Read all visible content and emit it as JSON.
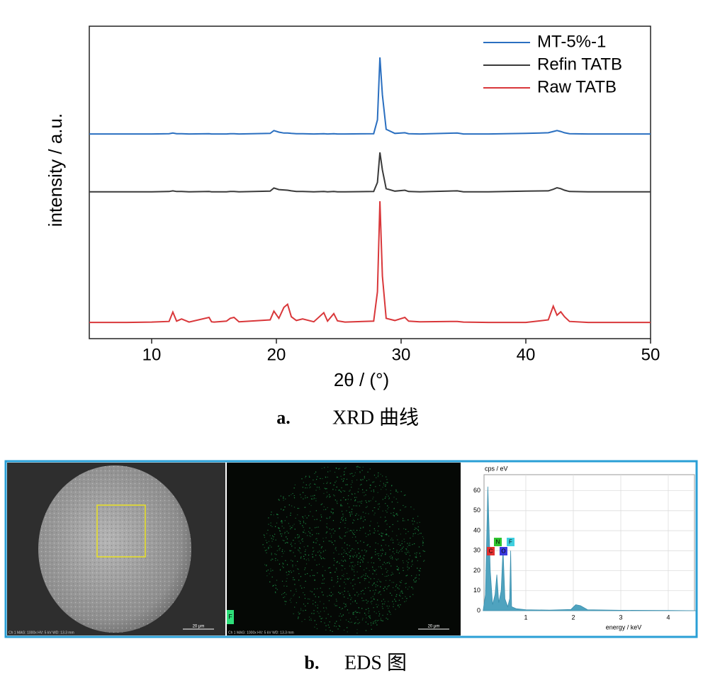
{
  "chart_data": [
    {
      "type": "line",
      "xlabel": "2θ / (°)",
      "ylabel": "intensity / a.u.",
      "xlim": [
        5,
        50
      ],
      "xticks": [
        10,
        20,
        30,
        40,
        50
      ],
      "ylim": [
        0,
        100
      ],
      "legend": "upper right",
      "x": [
        5,
        8,
        10,
        11.4,
        11.7,
        12,
        12.4,
        13,
        14.6,
        14.8,
        15,
        16,
        16.3,
        16.6,
        17,
        19.5,
        19.8,
        20.2,
        20.6,
        20.9,
        21.2,
        21.6,
        22.1,
        23,
        23.8,
        24.1,
        24.6,
        24.9,
        25.5,
        27.8,
        28.1,
        28.3,
        28.5,
        28.8,
        29.5,
        30.3,
        30.6,
        31.5,
        34.5,
        35,
        37,
        40,
        41.8,
        42.2,
        42.5,
        42.8,
        43.1,
        43.5,
        45,
        50
      ],
      "series": [
        {
          "name": "MT-5%-1",
          "color": "#2a6fc0",
          "values": [
            65.5,
            65.5,
            65.5,
            65.6,
            65.8,
            65.6,
            65.6,
            65.5,
            65.6,
            65.5,
            65.5,
            65.5,
            65.6,
            65.6,
            65.5,
            65.7,
            66.6,
            66.1,
            65.8,
            65.8,
            65.7,
            65.6,
            65.6,
            65.5,
            65.6,
            65.5,
            65.6,
            65.5,
            65.5,
            65.6,
            70,
            90,
            78,
            67,
            65.7,
            65.9,
            65.6,
            65.5,
            65.8,
            65.5,
            65.5,
            65.7,
            65.9,
            66.3,
            66.6,
            66.3,
            65.9,
            65.6,
            65.5,
            65.5
          ]
        },
        {
          "name": "Refin TATB",
          "color": "#3a3a3a",
          "values": [
            47,
            47,
            47,
            47.1,
            47.3,
            47.1,
            47.1,
            47,
            47.1,
            47,
            47,
            47,
            47.1,
            47.1,
            47,
            47.2,
            48.2,
            47.7,
            47.6,
            47.5,
            47.3,
            47.1,
            47.1,
            47,
            47.1,
            47,
            47.1,
            47,
            47,
            47.1,
            50,
            59.6,
            54,
            48,
            47.2,
            47.5,
            47.1,
            47,
            47.3,
            47,
            47,
            47.2,
            47.3,
            47.8,
            48.3,
            48,
            47.5,
            47.1,
            47,
            47
          ]
        },
        {
          "name": "Raw TATB",
          "color": "#d9373a",
          "values": [
            5.2,
            5.2,
            5.3,
            5.5,
            8.5,
            5.6,
            6.3,
            5.3,
            6.8,
            5.4,
            5.3,
            5.6,
            6.5,
            6.8,
            5.4,
            6,
            8.8,
            6.5,
            10,
            11,
            7,
            5.8,
            6.3,
            5.4,
            8.3,
            5.6,
            8,
            5.7,
            5.3,
            5.6,
            15,
            44,
            20,
            6.5,
            5.8,
            6.8,
            5.6,
            5.4,
            5.5,
            5.3,
            5.2,
            5.2,
            6,
            10.4,
            7.5,
            8.6,
            7,
            5.5,
            5.2,
            5.2
          ]
        }
      ]
    },
    {
      "type": "area",
      "ylabel": "cps / eV",
      "xlabel": "energy / keV",
      "xlim": [
        0,
        4.6
      ],
      "xticks": [
        1,
        2,
        3,
        4
      ],
      "ylim": [
        0,
        68
      ],
      "yticks": [
        0,
        10,
        20,
        30,
        40,
        50,
        60
      ],
      "grid": true,
      "color": "#4fa3bf",
      "x": [
        0.1,
        0.15,
        0.2,
        0.25,
        0.3,
        0.35,
        0.39,
        0.43,
        0.48,
        0.52,
        0.56,
        0.62,
        0.66,
        0.68,
        0.7,
        0.8,
        1,
        1.5,
        1.95,
        2.05,
        2.15,
        2.3,
        3,
        4,
        4.6
      ],
      "values": [
        0,
        8,
        62,
        20,
        3,
        8,
        18,
        4,
        10,
        31,
        6,
        2,
        6,
        30,
        2,
        1,
        0.5,
        0.3,
        0.6,
        3,
        2.5,
        0.5,
        0.2,
        0.1,
        0
      ],
      "annotations": [
        {
          "text": "C",
          "color": "#e03030"
        },
        {
          "text": "N",
          "color": "#2fc42f"
        },
        {
          "text": "O",
          "color": "#3a3adf"
        },
        {
          "text": "F",
          "color": "#3fd0e0"
        }
      ]
    }
  ],
  "captions": {
    "a_letter": "a.",
    "a_text": "XRD 曲线",
    "b_letter": "b.",
    "b_text": "EDS 图"
  },
  "eds": {
    "sem_footer": "Ch 1    MAG: 1000x    HV: 5 kV    WD: 13.3 mm",
    "scale_bar": "20 μm",
    "map_label": "F"
  }
}
